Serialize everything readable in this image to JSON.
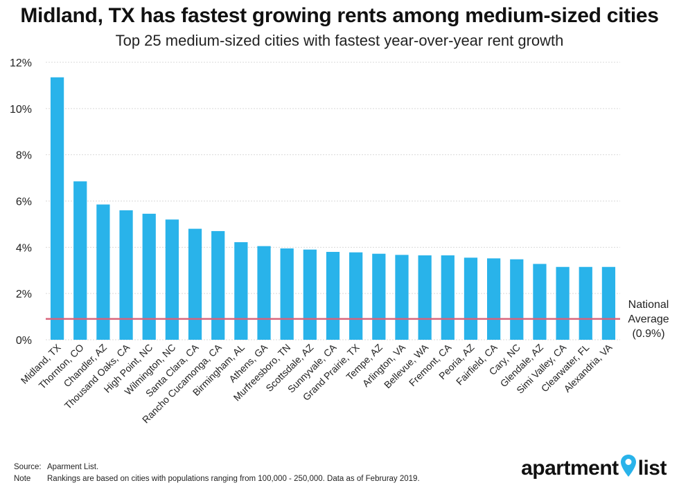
{
  "title": "Midland, TX has fastest growing rents among medium-sized cities",
  "subtitle": "Top 25 medium-sized cities with fastest year-over-year rent growth",
  "chart_data": {
    "type": "bar",
    "title": "Midland, TX has fastest growing rents among medium-sized cities",
    "subtitle": "Top 25 medium-sized cities with fastest year-over-year rent growth",
    "xlabel": "",
    "ylabel": "",
    "ylim": [
      0,
      12
    ],
    "yticks": [
      0,
      2,
      4,
      6,
      8,
      10,
      12
    ],
    "ytick_labels": [
      "0%",
      "2%",
      "4%",
      "6%",
      "8%",
      "10%",
      "12%"
    ],
    "grid": true,
    "bar_color": "#29b3ea",
    "categories": [
      "Midland, TX",
      "Thornton, CO",
      "Chandler, AZ",
      "Thousand Oaks, CA",
      "High Point, NC",
      "Wilmington, NC",
      "Santa Clara, CA",
      "Rancho Cucamonga, CA",
      "Birmingham, AL",
      "Athens, GA",
      "Murfreesboro, TN",
      "Scottsdale, AZ",
      "Sunnyvale, CA",
      "Grand Prairie, TX",
      "Tempe, AZ",
      "Arlington, VA",
      "Bellevue, WA",
      "Fremont, CA",
      "Peoria, AZ",
      "Fairfield, CA",
      "Cary, NC",
      "Glendale, AZ",
      "Simi Valley, CA",
      "Clearwater, FL",
      "Alexandria, VA"
    ],
    "values": [
      11.35,
      6.85,
      5.85,
      5.6,
      5.45,
      5.2,
      4.8,
      4.7,
      4.22,
      4.05,
      3.95,
      3.9,
      3.8,
      3.78,
      3.72,
      3.67,
      3.65,
      3.65,
      3.55,
      3.52,
      3.48,
      3.28,
      3.15,
      3.15,
      3.15
    ],
    "reference_line": {
      "value": 0.9,
      "label_lines": [
        "National",
        "Average",
        "(0.9%)"
      ],
      "color": "#d9637a"
    }
  },
  "footer": {
    "source_key": "Source:",
    "source_text": "Aparment List.",
    "note_key": "Note",
    "note_text": "Rankings are based on cities with populations ranging from 100,000 - 250,000. Data as of Februray 2019."
  },
  "logo": {
    "left": "apartment",
    "right": "list",
    "pin_color": "#29b3ea"
  }
}
